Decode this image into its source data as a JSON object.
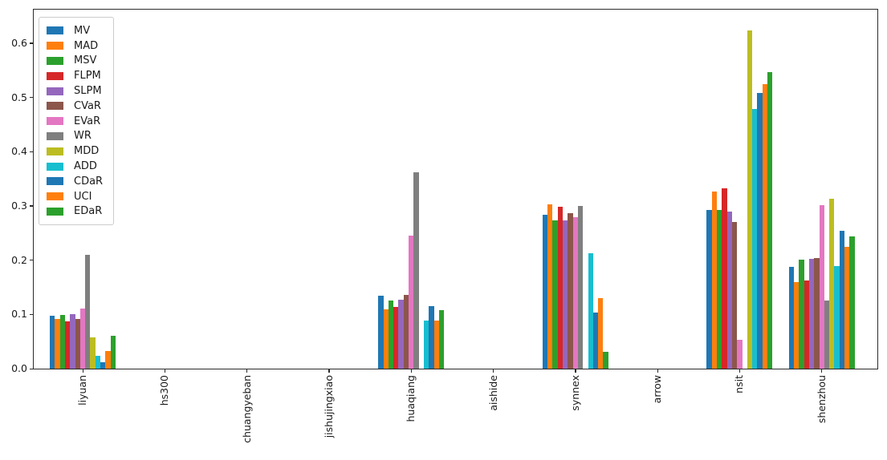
{
  "chart_data": {
    "type": "bar",
    "title": "",
    "xlabel": "",
    "ylabel": "",
    "grid": false,
    "legend_position": "upper left",
    "ylim": [
      0,
      0.662
    ],
    "yticks": [
      0.0,
      0.1,
      0.2,
      0.3,
      0.4,
      0.5,
      0.6
    ],
    "categories": [
      "liyuan",
      "hs300",
      "chuangyeban",
      "jishujingxiao",
      "huaqiang",
      "aishide",
      "synnex",
      "arrow",
      "nsit",
      "shenzhou"
    ],
    "bar_group_fraction": 0.8,
    "series": [
      {
        "name": "MV",
        "color": "#1f77b4",
        "values": [
          0.098,
          0,
          0,
          0,
          0.134,
          0,
          0.284,
          0,
          0.292,
          0.188
        ]
      },
      {
        "name": "MAD",
        "color": "#ff7f0e",
        "values": [
          0.092,
          0,
          0,
          0,
          0.11,
          0,
          0.303,
          0,
          0.327,
          0.159
        ]
      },
      {
        "name": "MSV",
        "color": "#2ca02c",
        "values": [
          0.099,
          0,
          0,
          0,
          0.126,
          0,
          0.274,
          0,
          0.292,
          0.201
        ]
      },
      {
        "name": "FLPM",
        "color": "#d62728",
        "values": [
          0.087,
          0,
          0,
          0,
          0.114,
          0,
          0.298,
          0,
          0.333,
          0.162
        ]
      },
      {
        "name": "SLPM",
        "color": "#9467bd",
        "values": [
          0.1,
          0,
          0,
          0,
          0.127,
          0,
          0.274,
          0,
          0.289,
          0.202
        ]
      },
      {
        "name": "CVaR",
        "color": "#8c564b",
        "values": [
          0.091,
          0,
          0,
          0,
          0.136,
          0,
          0.287,
          0,
          0.271,
          0.204
        ]
      },
      {
        "name": "EVaR",
        "color": "#e377c2",
        "values": [
          0.111,
          0,
          0,
          0,
          0.246,
          0,
          0.279,
          0,
          0.053,
          0.301
        ]
      },
      {
        "name": "WR",
        "color": "#7f7f7f",
        "values": [
          0.21,
          0,
          0,
          0,
          0.362,
          0,
          0.3,
          0,
          0.0,
          0.126
        ]
      },
      {
        "name": "MDD",
        "color": "#bcbd22",
        "values": [
          0.058,
          0,
          0,
          0,
          0.0,
          0,
          0.0,
          0,
          0.624,
          0.314
        ]
      },
      {
        "name": "ADD",
        "color": "#17becf",
        "values": [
          0.024,
          0,
          0,
          0,
          0.089,
          0,
          0.213,
          0,
          0.479,
          0.189
        ]
      },
      {
        "name": "CDaR",
        "color": "#1f77b4",
        "values": [
          0.012,
          0,
          0,
          0,
          0.116,
          0,
          0.104,
          0,
          0.509,
          0.254
        ]
      },
      {
        "name": "UCI",
        "color": "#ff7f0e",
        "values": [
          0.032,
          0,
          0,
          0,
          0.088,
          0,
          0.13,
          0,
          0.525,
          0.224
        ]
      },
      {
        "name": "EDaR",
        "color": "#2ca02c",
        "values": [
          0.06,
          0,
          0,
          0,
          0.108,
          0,
          0.031,
          0,
          0.547,
          0.244
        ]
      }
    ]
  }
}
